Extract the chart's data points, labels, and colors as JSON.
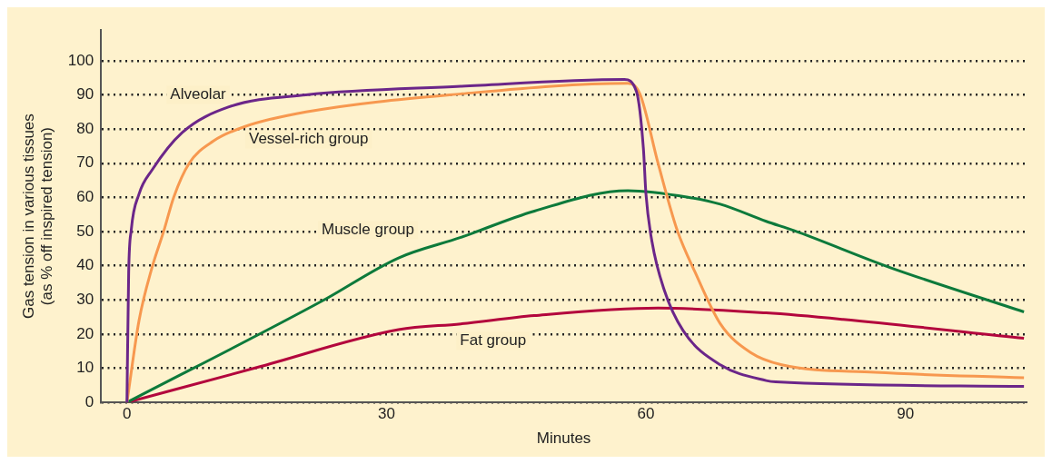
{
  "chart_data": {
    "type": "line",
    "xlabel": "Minutes",
    "ylabel": "Gas tension in various tissues\n(as % off inspired tension)",
    "xlim": [
      -3,
      104
    ],
    "xticks": [
      0,
      30,
      60,
      90
    ],
    "ylim": [
      0,
      109
    ],
    "yticks": [
      0,
      10,
      20,
      30,
      40,
      50,
      60,
      70,
      80,
      90,
      100
    ],
    "grid": "y",
    "legend": false,
    "marker": "none",
    "line_style": "solid",
    "series": [
      {
        "name": "Alveolar",
        "color": "#6b2689",
        "x": [
          0,
          0.2,
          0.5,
          1.4,
          2.9,
          6.4,
          11.8,
          20.7,
          38.6,
          57.5,
          58.9,
          59.7,
          60,
          60.7,
          62.1,
          64.3,
          68.6,
          73.9,
          75,
          103.7
        ],
        "values": [
          0,
          38,
          50.5,
          61,
          68,
          79,
          86.5,
          90,
          92.5,
          94.5,
          91,
          74.5,
          61,
          47,
          33,
          21,
          11,
          6.4,
          6,
          4.7
        ]
      },
      {
        "name": "Vessel-rich group",
        "color": "#f7984f",
        "x": [
          0,
          1.4,
          2.9,
          4.3,
          5.4,
          7.2,
          10,
          13.6,
          20.7,
          38.6,
          57.9,
          59.3,
          61.4,
          63.6,
          65.7,
          68.6,
          72.1,
          75.7,
          86.5,
          103.7
        ],
        "values": [
          0,
          24,
          39.5,
          50.5,
          60,
          70,
          76.5,
          80.7,
          85,
          90.3,
          93.4,
          90.3,
          70,
          50.5,
          38,
          23,
          14.6,
          11,
          8.8,
          7.2
        ]
      },
      {
        "name": "Muscle group",
        "color": "#0d7a3b",
        "x": [
          0,
          22.5,
          31.4,
          38.6,
          47.1,
          57.9,
          65,
          68.6,
          73.9,
          77.1,
          88.2,
          103.7
        ],
        "values": [
          0,
          29.6,
          42.3,
          48.3,
          56,
          62,
          60,
          58,
          53,
          50.3,
          39.5,
          26.5
        ]
      },
      {
        "name": "Fat group",
        "color": "#b3063d",
        "x": [
          0,
          15,
          31.4,
          38.6,
          47.1,
          61.4,
          73.9,
          82.8,
          103.7
        ],
        "values": [
          0,
          10.2,
          21.3,
          23,
          25.4,
          27.6,
          26.2,
          24.3,
          18.8
        ]
      }
    ]
  }
}
